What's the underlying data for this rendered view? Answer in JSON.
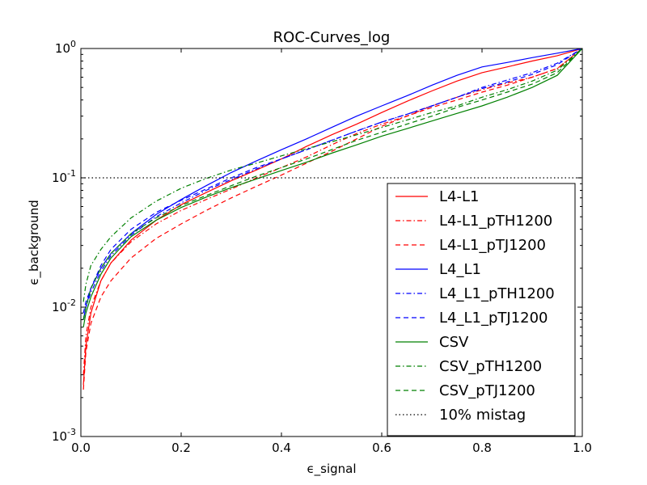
{
  "chart_data": {
    "type": "line",
    "title": "ROC-Curves_log",
    "xlabel": "ϵ_signal",
    "ylabel": "ϵ_background",
    "xlim": [
      0.0,
      1.0
    ],
    "ylim": [
      0.001,
      1
    ],
    "yscale": "log",
    "grid": false,
    "legend_position": "lower-right",
    "x_ticks": [
      {
        "value": 0.0,
        "label": "0.0"
      },
      {
        "value": 0.2,
        "label": "0.2"
      },
      {
        "value": 0.4,
        "label": "0.4"
      },
      {
        "value": 0.6,
        "label": "0.6"
      },
      {
        "value": 0.8,
        "label": "0.8"
      },
      {
        "value": 1.0,
        "label": "1.0"
      }
    ],
    "y_ticks": [
      {
        "value": 0.001,
        "base": "10",
        "exp": "-3"
      },
      {
        "value": 0.01,
        "base": "10",
        "exp": "-2"
      },
      {
        "value": 0.1,
        "base": "10",
        "exp": "-1"
      },
      {
        "value": 1,
        "base": "10",
        "exp": "0"
      }
    ],
    "series": [
      {
        "name": "L4-L1",
        "color": "#ff0000",
        "dash": "solid",
        "points": [
          [
            0.005,
            0.0025
          ],
          [
            0.01,
            0.005
          ],
          [
            0.02,
            0.009
          ],
          [
            0.04,
            0.016
          ],
          [
            0.06,
            0.022
          ],
          [
            0.1,
            0.033
          ],
          [
            0.15,
            0.047
          ],
          [
            0.2,
            0.062
          ],
          [
            0.25,
            0.077
          ],
          [
            0.3,
            0.095
          ],
          [
            0.35,
            0.115
          ],
          [
            0.4,
            0.14
          ],
          [
            0.45,
            0.175
          ],
          [
            0.5,
            0.215
          ],
          [
            0.55,
            0.26
          ],
          [
            0.6,
            0.32
          ],
          [
            0.65,
            0.39
          ],
          [
            0.7,
            0.47
          ],
          [
            0.75,
            0.56
          ],
          [
            0.8,
            0.65
          ],
          [
            0.85,
            0.72
          ],
          [
            0.9,
            0.8
          ],
          [
            0.95,
            0.88
          ],
          [
            1.0,
            1.0
          ]
        ]
      },
      {
        "name": "L4-L1_pTH1200",
        "color": "#ff0000",
        "dash": "dashdot",
        "points": [
          [
            0.005,
            0.003
          ],
          [
            0.01,
            0.006
          ],
          [
            0.02,
            0.01
          ],
          [
            0.04,
            0.016
          ],
          [
            0.06,
            0.022
          ],
          [
            0.1,
            0.032
          ],
          [
            0.15,
            0.044
          ],
          [
            0.2,
            0.056
          ],
          [
            0.25,
            0.068
          ],
          [
            0.3,
            0.082
          ],
          [
            0.35,
            0.1
          ],
          [
            0.4,
            0.12
          ],
          [
            0.45,
            0.145
          ],
          [
            0.5,
            0.18
          ],
          [
            0.55,
            0.22
          ],
          [
            0.6,
            0.26
          ],
          [
            0.65,
            0.3
          ],
          [
            0.7,
            0.36
          ],
          [
            0.75,
            0.42
          ],
          [
            0.8,
            0.48
          ],
          [
            0.85,
            0.54
          ],
          [
            0.9,
            0.6
          ],
          [
            0.95,
            0.7
          ],
          [
            1.0,
            1.0
          ]
        ]
      },
      {
        "name": "L4-L1_pTJ1200",
        "color": "#ff0000",
        "dash": "dashed",
        "points": [
          [
            0.005,
            0.0023
          ],
          [
            0.01,
            0.0045
          ],
          [
            0.02,
            0.0075
          ],
          [
            0.04,
            0.012
          ],
          [
            0.06,
            0.016
          ],
          [
            0.1,
            0.024
          ],
          [
            0.15,
            0.034
          ],
          [
            0.2,
            0.044
          ],
          [
            0.25,
            0.056
          ],
          [
            0.3,
            0.07
          ],
          [
            0.35,
            0.086
          ],
          [
            0.4,
            0.105
          ],
          [
            0.45,
            0.13
          ],
          [
            0.5,
            0.16
          ],
          [
            0.55,
            0.2
          ],
          [
            0.6,
            0.25
          ],
          [
            0.65,
            0.3
          ],
          [
            0.7,
            0.35
          ],
          [
            0.75,
            0.4
          ],
          [
            0.8,
            0.46
          ],
          [
            0.85,
            0.52
          ],
          [
            0.9,
            0.6
          ],
          [
            0.95,
            0.7
          ],
          [
            1.0,
            1.0
          ]
        ]
      },
      {
        "name": "L4_L1",
        "color": "#0000ff",
        "dash": "solid",
        "points": [
          [
            0.005,
            0.008
          ],
          [
            0.01,
            0.01
          ],
          [
            0.02,
            0.014
          ],
          [
            0.04,
            0.02
          ],
          [
            0.06,
            0.026
          ],
          [
            0.1,
            0.037
          ],
          [
            0.15,
            0.052
          ],
          [
            0.2,
            0.068
          ],
          [
            0.25,
            0.087
          ],
          [
            0.3,
            0.11
          ],
          [
            0.35,
            0.135
          ],
          [
            0.4,
            0.165
          ],
          [
            0.45,
            0.2
          ],
          [
            0.5,
            0.245
          ],
          [
            0.55,
            0.3
          ],
          [
            0.6,
            0.36
          ],
          [
            0.65,
            0.43
          ],
          [
            0.7,
            0.52
          ],
          [
            0.75,
            0.62
          ],
          [
            0.8,
            0.72
          ],
          [
            0.85,
            0.78
          ],
          [
            0.9,
            0.85
          ],
          [
            0.95,
            0.92
          ],
          [
            1.0,
            1.0
          ]
        ]
      },
      {
        "name": "L4_L1_pTH1200",
        "color": "#0000ff",
        "dash": "dashdot",
        "points": [
          [
            0.005,
            0.008
          ],
          [
            0.01,
            0.01
          ],
          [
            0.02,
            0.013
          ],
          [
            0.04,
            0.019
          ],
          [
            0.06,
            0.025
          ],
          [
            0.1,
            0.036
          ],
          [
            0.15,
            0.05
          ],
          [
            0.2,
            0.064
          ],
          [
            0.25,
            0.08
          ],
          [
            0.3,
            0.097
          ],
          [
            0.35,
            0.117
          ],
          [
            0.4,
            0.14
          ],
          [
            0.45,
            0.165
          ],
          [
            0.5,
            0.195
          ],
          [
            0.55,
            0.23
          ],
          [
            0.6,
            0.27
          ],
          [
            0.65,
            0.31
          ],
          [
            0.7,
            0.36
          ],
          [
            0.75,
            0.42
          ],
          [
            0.8,
            0.5
          ],
          [
            0.85,
            0.57
          ],
          [
            0.9,
            0.65
          ],
          [
            0.95,
            0.77
          ],
          [
            1.0,
            1.0
          ]
        ]
      },
      {
        "name": "L4_L1_pTJ1200",
        "color": "#0000ff",
        "dash": "dashed",
        "points": [
          [
            0.005,
            0.009
          ],
          [
            0.01,
            0.011
          ],
          [
            0.02,
            0.014
          ],
          [
            0.04,
            0.021
          ],
          [
            0.06,
            0.028
          ],
          [
            0.1,
            0.04
          ],
          [
            0.15,
            0.054
          ],
          [
            0.2,
            0.067
          ],
          [
            0.25,
            0.082
          ],
          [
            0.3,
            0.1
          ],
          [
            0.35,
            0.12
          ],
          [
            0.4,
            0.14
          ],
          [
            0.45,
            0.165
          ],
          [
            0.5,
            0.195
          ],
          [
            0.55,
            0.23
          ],
          [
            0.6,
            0.27
          ],
          [
            0.65,
            0.31
          ],
          [
            0.7,
            0.36
          ],
          [
            0.75,
            0.42
          ],
          [
            0.8,
            0.49
          ],
          [
            0.85,
            0.55
          ],
          [
            0.9,
            0.63
          ],
          [
            0.95,
            0.75
          ],
          [
            1.0,
            1.0
          ]
        ]
      },
      {
        "name": "CSV",
        "color": "#008000",
        "dash": "solid",
        "points": [
          [
            0.005,
            0.007
          ],
          [
            0.01,
            0.009
          ],
          [
            0.02,
            0.012
          ],
          [
            0.04,
            0.018
          ],
          [
            0.06,
            0.024
          ],
          [
            0.1,
            0.035
          ],
          [
            0.15,
            0.047
          ],
          [
            0.2,
            0.059
          ],
          [
            0.25,
            0.071
          ],
          [
            0.3,
            0.084
          ],
          [
            0.35,
            0.098
          ],
          [
            0.4,
            0.114
          ],
          [
            0.45,
            0.132
          ],
          [
            0.5,
            0.155
          ],
          [
            0.55,
            0.18
          ],
          [
            0.6,
            0.21
          ],
          [
            0.65,
            0.24
          ],
          [
            0.7,
            0.275
          ],
          [
            0.75,
            0.315
          ],
          [
            0.8,
            0.36
          ],
          [
            0.85,
            0.42
          ],
          [
            0.9,
            0.5
          ],
          [
            0.95,
            0.62
          ],
          [
            1.0,
            1.0
          ]
        ]
      },
      {
        "name": "CSV_pTH1200",
        "color": "#008000",
        "dash": "dashdot",
        "points": [
          [
            0.005,
            0.011
          ],
          [
            0.01,
            0.015
          ],
          [
            0.02,
            0.021
          ],
          [
            0.04,
            0.028
          ],
          [
            0.06,
            0.035
          ],
          [
            0.1,
            0.049
          ],
          [
            0.15,
            0.066
          ],
          [
            0.2,
            0.083
          ],
          [
            0.25,
            0.099
          ],
          [
            0.3,
            0.115
          ],
          [
            0.35,
            0.13
          ],
          [
            0.4,
            0.148
          ],
          [
            0.45,
            0.168
          ],
          [
            0.5,
            0.19
          ],
          [
            0.55,
            0.215
          ],
          [
            0.6,
            0.245
          ],
          [
            0.65,
            0.28
          ],
          [
            0.7,
            0.32
          ],
          [
            0.75,
            0.36
          ],
          [
            0.8,
            0.42
          ],
          [
            0.85,
            0.48
          ],
          [
            0.9,
            0.56
          ],
          [
            0.95,
            0.68
          ],
          [
            1.0,
            1.0
          ]
        ]
      },
      {
        "name": "CSV_pTJ1200",
        "color": "#008000",
        "dash": "dashed",
        "points": [
          [
            0.005,
            0.008
          ],
          [
            0.01,
            0.01
          ],
          [
            0.02,
            0.014
          ],
          [
            0.04,
            0.02
          ],
          [
            0.06,
            0.026
          ],
          [
            0.1,
            0.037
          ],
          [
            0.15,
            0.049
          ],
          [
            0.2,
            0.061
          ],
          [
            0.25,
            0.073
          ],
          [
            0.3,
            0.087
          ],
          [
            0.35,
            0.103
          ],
          [
            0.4,
            0.12
          ],
          [
            0.45,
            0.14
          ],
          [
            0.5,
            0.165
          ],
          [
            0.55,
            0.195
          ],
          [
            0.6,
            0.225
          ],
          [
            0.65,
            0.26
          ],
          [
            0.7,
            0.3
          ],
          [
            0.75,
            0.35
          ],
          [
            0.8,
            0.4
          ],
          [
            0.85,
            0.46
          ],
          [
            0.9,
            0.53
          ],
          [
            0.95,
            0.65
          ],
          [
            1.0,
            1.0
          ]
        ]
      },
      {
        "name": "10% mistag",
        "color": "#000000",
        "dash": "dotted",
        "points": [
          [
            0.0,
            0.1
          ],
          [
            1.0,
            0.1
          ]
        ]
      }
    ]
  }
}
